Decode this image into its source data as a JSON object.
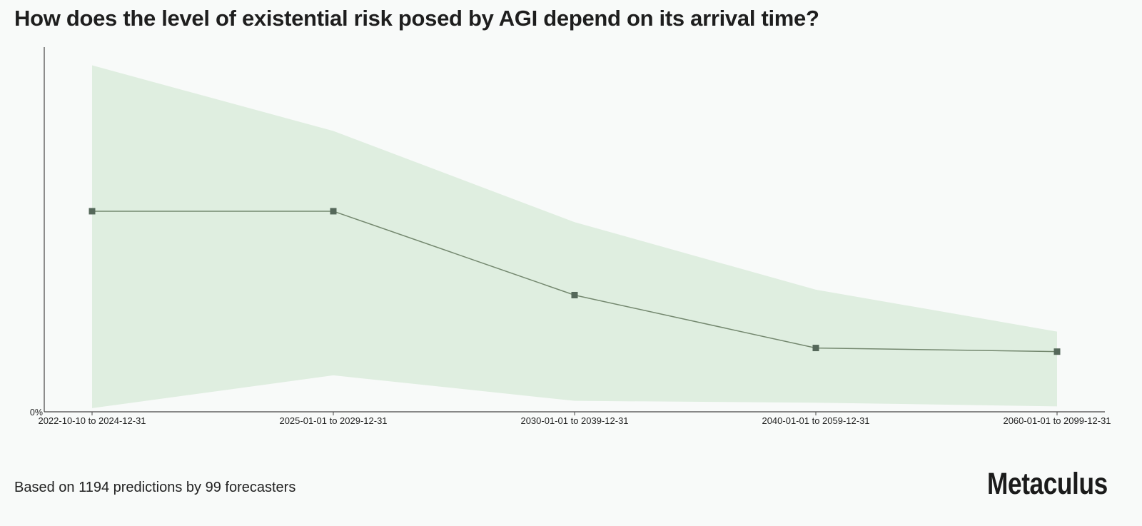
{
  "title": "How does the level of existential risk posed by AGI depend on its arrival time?",
  "footer": {
    "note": "Based on 1194 predictions by 99 forecasters",
    "brand": "Metaculus"
  },
  "colors": {
    "band": "#dfeee0",
    "line": "#74886f",
    "marker": "#55685a",
    "axis": "#444444",
    "text": "#1f1f1f"
  },
  "chart_data": {
    "type": "line",
    "title": "How does the level of existential risk posed by AGI depend on its arrival time?",
    "xlabel": "",
    "ylabel": "",
    "categories": [
      "2022-10-10 to 2024-12-31",
      "2025-01-01 to 2029-12-31",
      "2030-01-01 to 2039-12-31",
      "2040-01-01 to 2059-12-31",
      "2060-01-01 to 2099-12-31"
    ],
    "series": [
      {
        "values": [
          0.55,
          0.55,
          0.32,
          0.175,
          0.165
        ],
        "lower": [
          0.01,
          0.1,
          0.03,
          0.025,
          0.015
        ],
        "upper": [
          0.95,
          0.77,
          0.52,
          0.335,
          0.22
        ]
      }
    ],
    "y_tick_labels": [
      "0%"
    ],
    "ylim": [
      0,
      1
    ],
    "grid": false,
    "legend": "none"
  }
}
